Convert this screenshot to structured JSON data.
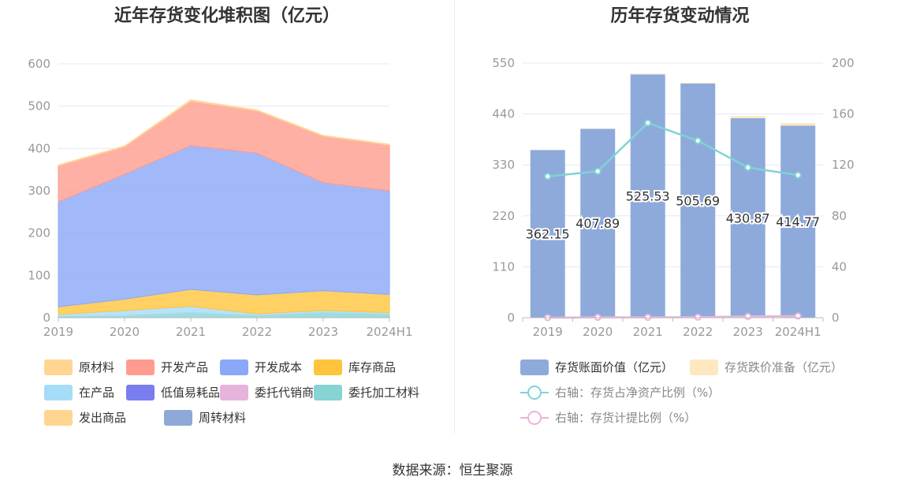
{
  "left_chart": {
    "title": "近年存货变化堆积图（亿元）",
    "chart_data": {
      "type": "area",
      "stacked": true,
      "title": "近年存货变化堆积图（亿元）",
      "categories": [
        "2019",
        "2020",
        "2021",
        "2022",
        "2023",
        "2024H1"
      ],
      "ylim": [
        0,
        600
      ],
      "yticks": [
        0,
        100,
        200,
        300,
        400,
        500,
        600
      ],
      "grid": true,
      "legend_position": "bottom",
      "series": [
        {
          "name": "原材料",
          "color": "#ffd591",
          "values": [
            2,
            2,
            3,
            2,
            2,
            2
          ]
        },
        {
          "name": "开发产品",
          "color": "#ff9c8f",
          "values": [
            85,
            65,
            105,
            100,
            110,
            108
          ]
        },
        {
          "name": "开发成本",
          "color": "#8ba7f8",
          "values": [
            248,
            295,
            340,
            335,
            255,
            245
          ]
        },
        {
          "name": "库存商品",
          "color": "#ffc43d",
          "values": [
            18,
            27,
            40,
            45,
            47,
            43
          ]
        },
        {
          "name": "在产品",
          "color": "#a5dcf7",
          "values": [
            5,
            12,
            15,
            4,
            5,
            4
          ]
        },
        {
          "name": "低值易耗品",
          "color": "#7a7df0",
          "values": [
            0,
            0,
            0,
            0,
            0,
            0
          ]
        },
        {
          "name": "委托代销商品",
          "color": "#e6b3dc",
          "values": [
            0,
            0,
            0,
            0,
            0,
            0
          ]
        },
        {
          "name": "委托加工材料",
          "color": "#86d4d4",
          "values": [
            3,
            5,
            12,
            5,
            12,
            8
          ]
        },
        {
          "name": "发出商品",
          "color": "#ffd591",
          "values": [
            0,
            0,
            0,
            0,
            0,
            0
          ]
        },
        {
          "name": "周转材料",
          "color": "#8ea9d8",
          "values": [
            0,
            0,
            0,
            0,
            0,
            0
          ]
        }
      ]
    }
  },
  "right_chart": {
    "title": "历年存货变动情况",
    "chart_data": {
      "type": "bar",
      "title": "历年存货变动情况",
      "categories": [
        "2019",
        "2020",
        "2021",
        "2022",
        "2023",
        "2024H1"
      ],
      "ylim_left": [
        0,
        550
      ],
      "yticks_left": [
        0,
        110,
        220,
        330,
        440,
        550
      ],
      "ylim_right": [
        0,
        200
      ],
      "yticks_right": [
        0,
        40,
        80,
        120,
        160,
        200
      ],
      "grid": true,
      "legend_position": "bottom",
      "bar_series": [
        {
          "name": "存货账面价值（亿元）",
          "color": "#8eaadb",
          "values": [
            362.15,
            407.89,
            525.53,
            505.69,
            430.87,
            414.77
          ],
          "labels": [
            "362.15",
            "407.89",
            "525.53",
            "505.69",
            "430.87",
            "414.77"
          ]
        },
        {
          "name": "存货跌价准备（亿元）",
          "color": "#ffe7c2",
          "values": [
            0,
            0.8,
            1.5,
            1.8,
            4.5,
            5.5
          ]
        }
      ],
      "line_series": [
        {
          "name": "右轴：存货占净资产比例（%）",
          "color": "#7fd3d6",
          "values": [
            111,
            115,
            153,
            139,
            118,
            112
          ]
        },
        {
          "name": "右轴：存货计提比例（%）",
          "color": "#e8b5dc",
          "values": [
            0,
            0.3,
            0.3,
            0.4,
            1.0,
            1.3
          ]
        }
      ]
    }
  },
  "source": "数据来源：恒生聚源"
}
